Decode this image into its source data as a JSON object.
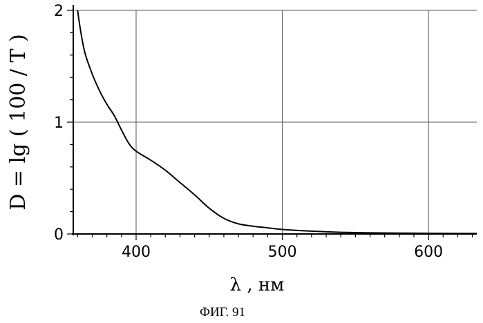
{
  "chart_data": {
    "type": "line",
    "xlabel": "λ , нм",
    "ylabel": "D = lg ( 100 / T )",
    "caption": "ФИГ. 91",
    "xlim": [
      357,
      633
    ],
    "ylim": [
      0,
      2
    ],
    "xticks": [
      400,
      500,
      600
    ],
    "yticks": [
      0,
      1,
      2
    ],
    "grid": true,
    "series": [
      {
        "x": [
          360,
          362,
          365,
          370,
          375,
          380,
          385,
          390,
          395,
          400,
          410,
          420,
          430,
          440,
          450,
          460,
          470,
          480,
          490,
          500,
          520,
          540,
          560,
          580,
          600,
          620,
          633
        ],
        "y": [
          2.0,
          1.82,
          1.62,
          1.43,
          1.28,
          1.16,
          1.06,
          0.93,
          0.81,
          0.74,
          0.66,
          0.57,
          0.46,
          0.35,
          0.23,
          0.14,
          0.09,
          0.07,
          0.055,
          0.04,
          0.025,
          0.015,
          0.01,
          0.008,
          0.006,
          0.005,
          0.005
        ]
      }
    ]
  }
}
